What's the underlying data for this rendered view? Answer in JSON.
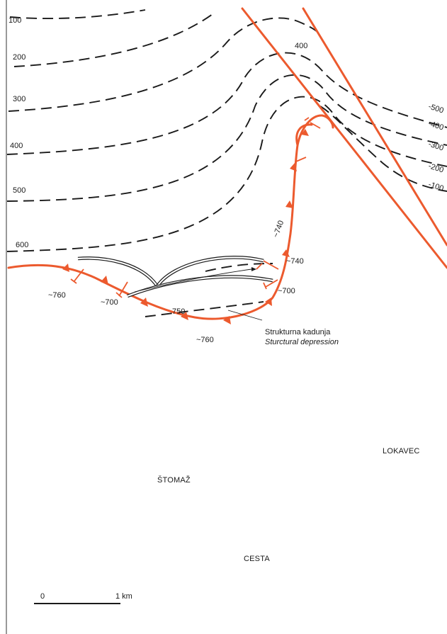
{
  "contour_labels_west": [
    "100",
    "200",
    "300",
    "400",
    "500",
    "600"
  ],
  "contour_labels_east": [
    "-500",
    "-400",
    "-300",
    "-200",
    "-100"
  ],
  "contour_label_top": "400",
  "depth_labels": {
    "d760_west": "~760",
    "d700_west": "~700",
    "d750": "750",
    "d760_south": "~760",
    "d700_east": "~700",
    "d740_east": "~740",
    "d740_rotated": "~740"
  },
  "annotation": {
    "title": "Strukturna kadunja",
    "subtitle": "Sturctural depression"
  },
  "places": {
    "lokavec": "LOKAVEC",
    "stomaz": "ŠTOMAŽ",
    "cesta": "CESTA"
  },
  "scale_bar": {
    "start": "0",
    "end": "1 km"
  },
  "colors": {
    "thrust_fault": "#ec5a2e",
    "contour": "#1a1a1a",
    "border": "#555555"
  }
}
